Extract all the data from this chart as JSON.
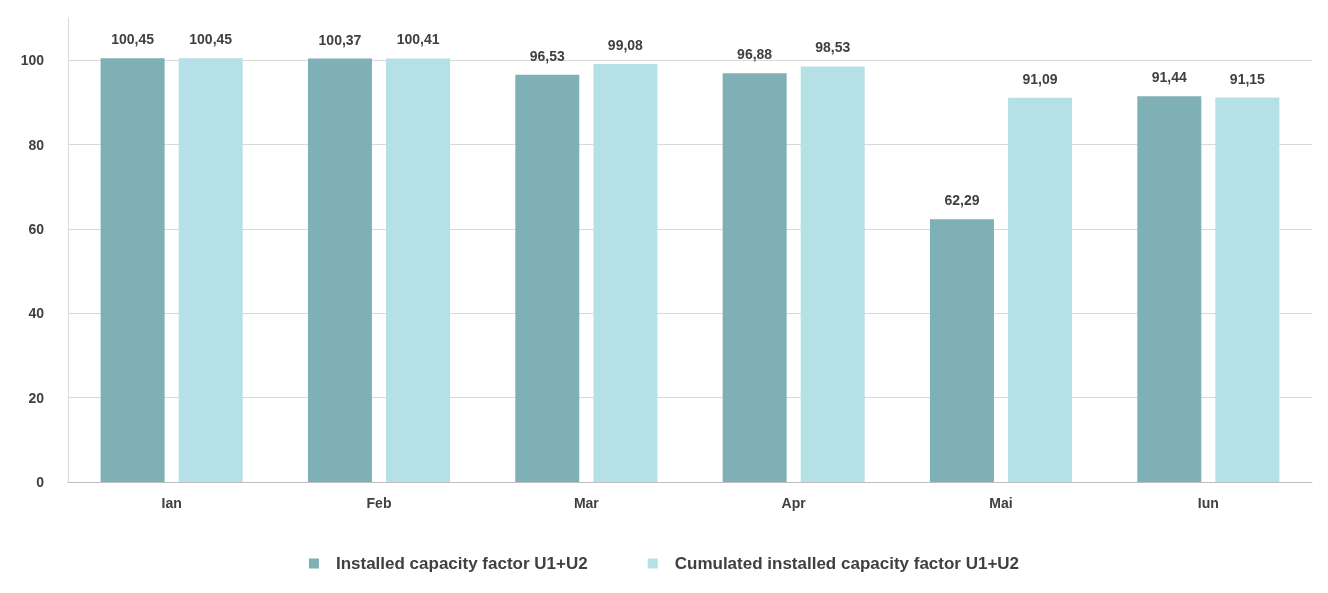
{
  "chart_data": {
    "type": "bar",
    "categories": [
      "Ian",
      "Feb",
      "Mar",
      "Apr",
      "Mai",
      "Iun"
    ],
    "series": [
      {
        "name": "Installed capacity factor U1+U2",
        "color": "#7fb0b5",
        "values": [
          100.45,
          100.37,
          96.53,
          96.88,
          62.29,
          91.44
        ],
        "value_labels": [
          "100,45",
          "100,37",
          "96,53",
          "96,88",
          "62,29",
          "91,44"
        ]
      },
      {
        "name": "Cumulated installed capacity factor U1+U2",
        "color": "#b5e0e5",
        "values": [
          100.45,
          100.41,
          99.08,
          98.53,
          91.09,
          91.15
        ],
        "value_labels": [
          "100,45",
          "100,41",
          "99,08",
          "98,53",
          "91,09",
          "91,15"
        ]
      }
    ],
    "ylim": [
      0,
      110
    ],
    "yticks": [
      0,
      20,
      40,
      60,
      80,
      100
    ],
    "grid": "y",
    "legend": "bottom"
  }
}
